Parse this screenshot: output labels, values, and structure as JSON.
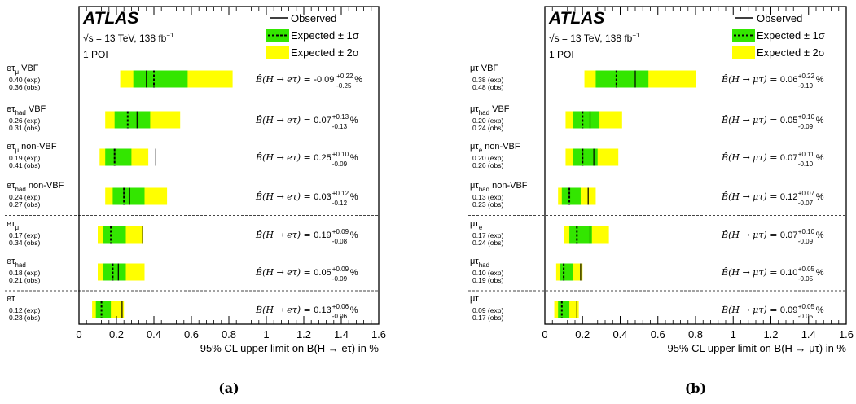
{
  "colors": {
    "band1": "#33e600",
    "band2": "#ffff00",
    "frame": "#000000",
    "sep": "#444444"
  },
  "chart_data": [
    {
      "type": "limit-plot",
      "panel_label": "(a)",
      "experiment": "ATLAS",
      "energy": "√s = 13 TeV, 138 fb",
      "energy_sup": "−1",
      "poi": "1 POI",
      "legend": {
        "observed": "Observed",
        "expected1": "Expected ± 1σ",
        "expected2": "Expected ± 2σ"
      },
      "xlabel": "95% CL upper limit on B(H → eτ) in %",
      "xlim": [
        0,
        1.6
      ],
      "ticks": [
        "0",
        "0.2",
        "0.4",
        "0.6",
        "0.8",
        "1",
        "1.2",
        "1.4",
        "1.6"
      ],
      "tick_values": [
        0,
        0.2,
        0.4,
        0.6,
        0.8,
        1.0,
        1.2,
        1.4,
        1.6
      ],
      "separators_after": [
        3,
        5
      ],
      "rows": [
        {
          "label": "eτ",
          "sub": "μ",
          "suffix": " VBF",
          "exp": 0.4,
          "obs": 0.36,
          "exp_text": "0.40 (exp)",
          "obs_text": "0.36 (obs)",
          "m2": 0.22,
          "m1": 0.29,
          "p1": 0.58,
          "p2": 0.82,
          "br_lhs": "B̂(H → eτ) = ",
          "br_val": "-0.09",
          "br_up": "+0.22",
          "br_dn": "-0.25",
          "br_unit": " %"
        },
        {
          "label": "eτ",
          "sub": "had",
          "suffix": " VBF",
          "exp": 0.26,
          "obs": 0.31,
          "exp_text": "0.26 (exp)",
          "obs_text": "0.31 (obs)",
          "m2": 0.14,
          "m1": 0.19,
          "p1": 0.38,
          "p2": 0.54,
          "br_lhs": "B̂(H → eτ) = ",
          "br_val": "0.07",
          "br_up": "+0.13",
          "br_dn": "-0.13",
          "br_unit": " %"
        },
        {
          "label": "eτ",
          "sub": "μ",
          "suffix": " non-VBF",
          "exp": 0.19,
          "obs": 0.41,
          "exp_text": "0.19 (exp)",
          "obs_text": "0.41 (obs)",
          "m2": 0.11,
          "m1": 0.14,
          "p1": 0.28,
          "p2": 0.37,
          "br_lhs": "B̂(H → eτ) = ",
          "br_val": "0.25",
          "br_up": "+0.10",
          "br_dn": "-0.09",
          "br_unit": " %"
        },
        {
          "label": "eτ",
          "sub": "had",
          "suffix": " non-VBF",
          "exp": 0.24,
          "obs": 0.27,
          "exp_text": "0.24 (exp)",
          "obs_text": "0.27 (obs)",
          "m2": 0.14,
          "m1": 0.18,
          "p1": 0.35,
          "p2": 0.47,
          "br_lhs": "B̂(H → eτ) = ",
          "br_val": "0.03",
          "br_up": "+0.12",
          "br_dn": "-0.12",
          "br_unit": " %"
        },
        {
          "label": "eτ",
          "sub": "μ",
          "suffix": "",
          "exp": 0.17,
          "obs": 0.34,
          "exp_text": "0.17 (exp)",
          "obs_text": "0.34 (obs)",
          "m2": 0.1,
          "m1": 0.13,
          "p1": 0.25,
          "p2": 0.34,
          "br_lhs": "B̂(H → eτ) = ",
          "br_val": "0.19",
          "br_up": "+0.09",
          "br_dn": "-0.08",
          "br_unit": " %"
        },
        {
          "label": "eτ",
          "sub": "had",
          "suffix": "",
          "exp": 0.18,
          "obs": 0.21,
          "exp_text": "0.18 (exp)",
          "obs_text": "0.21 (obs)",
          "m2": 0.1,
          "m1": 0.13,
          "p1": 0.25,
          "p2": 0.35,
          "br_lhs": "B̂(H → eτ) = ",
          "br_val": "0.05",
          "br_up": "+0.09",
          "br_dn": "-0.09",
          "br_unit": " %"
        },
        {
          "label": "eτ",
          "sub": "",
          "suffix": "",
          "exp": 0.12,
          "obs": 0.23,
          "exp_text": "0.12 (exp)",
          "obs_text": "0.23 (obs)",
          "m2": 0.07,
          "m1": 0.09,
          "p1": 0.17,
          "p2": 0.24,
          "br_lhs": "B̂(H → eτ) = ",
          "br_val": "0.13",
          "br_up": "+0.06",
          "br_dn": "-0.06",
          "br_unit": " %"
        }
      ]
    },
    {
      "type": "limit-plot",
      "panel_label": "(b)",
      "experiment": "ATLAS",
      "energy": "√s = 13 TeV, 138 fb",
      "energy_sup": "−1",
      "poi": "1 POI",
      "legend": {
        "observed": "Observed",
        "expected1": "Expected ± 1σ",
        "expected2": "Expected ± 2σ"
      },
      "xlabel": "95% CL upper limit on B(H → μτ) in %",
      "xlim": [
        0,
        1.6
      ],
      "ticks": [
        "0",
        "0.2",
        "0.4",
        "0.6",
        "0.8",
        "1",
        "1.2",
        "1.4",
        "1.6"
      ],
      "tick_values": [
        0,
        0.2,
        0.4,
        0.6,
        0.8,
        1.0,
        1.2,
        1.4,
        1.6
      ],
      "separators_after": [
        3,
        5
      ],
      "rows": [
        {
          "label": "μτ",
          "sub": "",
          "suffix": " VBF",
          "exp": 0.38,
          "obs": 0.48,
          "exp_text": "0.38 (exp)",
          "obs_text": "0.48 (obs)",
          "m2": 0.21,
          "m1": 0.27,
          "p1": 0.55,
          "p2": 0.8,
          "br_lhs": "B̂(H → μτ) = ",
          "br_val": "0.06",
          "br_up": "+0.22",
          "br_dn": "-0.19",
          "br_unit": " %"
        },
        {
          "label": "μτ",
          "sub": "had",
          "suffix": " VBF",
          "exp": 0.2,
          "obs": 0.24,
          "exp_text": "0.20 (exp)",
          "obs_text": "0.24 (obs)",
          "m2": 0.11,
          "m1": 0.15,
          "p1": 0.29,
          "p2": 0.41,
          "br_lhs": "B̂(H → μτ) = ",
          "br_val": "0.05",
          "br_up": "+0.10",
          "br_dn": "-0.09",
          "br_unit": " %"
        },
        {
          "label": "μτ",
          "sub": "e",
          "suffix": " non-VBF",
          "exp": 0.2,
          "obs": 0.26,
          "exp_text": "0.20 (exp)",
          "obs_text": "0.26 (obs)",
          "m2": 0.11,
          "m1": 0.15,
          "p1": 0.28,
          "p2": 0.39,
          "br_lhs": "B̂(H → μτ) = ",
          "br_val": "0.07",
          "br_up": "+0.11",
          "br_dn": "-0.10",
          "br_unit": " %"
        },
        {
          "label": "μτ",
          "sub": "had",
          "suffix": " non-VBF",
          "exp": 0.13,
          "obs": 0.23,
          "exp_text": "0.13 (exp)",
          "obs_text": "0.23 (obs)",
          "m2": 0.07,
          "m1": 0.09,
          "p1": 0.19,
          "p2": 0.27,
          "br_lhs": "B̂(H → μτ) = ",
          "br_val": "0.12",
          "br_up": "+0.07",
          "br_dn": "-0.07",
          "br_unit": " %"
        },
        {
          "label": "μτ",
          "sub": "e",
          "suffix": "",
          "exp": 0.17,
          "obs": 0.24,
          "exp_text": "0.17 (exp)",
          "obs_text": "0.24 (obs)",
          "m2": 0.1,
          "m1": 0.13,
          "p1": 0.25,
          "p2": 0.34,
          "br_lhs": "B̂(H → μτ) = ",
          "br_val": "0.07",
          "br_up": "+0.10",
          "br_dn": "-0.09",
          "br_unit": " %"
        },
        {
          "label": "μτ",
          "sub": "had",
          "suffix": "",
          "exp": 0.1,
          "obs": 0.19,
          "exp_text": "0.10 (exp)",
          "obs_text": "0.19 (obs)",
          "m2": 0.06,
          "m1": 0.08,
          "p1": 0.15,
          "p2": 0.2,
          "br_lhs": "B̂(H → μτ) = ",
          "br_val": "0.10",
          "br_up": "+0.05",
          "br_dn": "-0.05",
          "br_unit": " %"
        },
        {
          "label": "μτ",
          "sub": "",
          "suffix": "",
          "exp": 0.09,
          "obs": 0.17,
          "exp_text": "0.09 (exp)",
          "obs_text": "0.17 (obs)",
          "m2": 0.05,
          "m1": 0.07,
          "p1": 0.13,
          "p2": 0.18,
          "br_lhs": "B̂(H → μτ) = ",
          "br_val": "0.09",
          "br_up": "+0.05",
          "br_dn": "-0.05",
          "br_unit": " %"
        }
      ]
    }
  ]
}
